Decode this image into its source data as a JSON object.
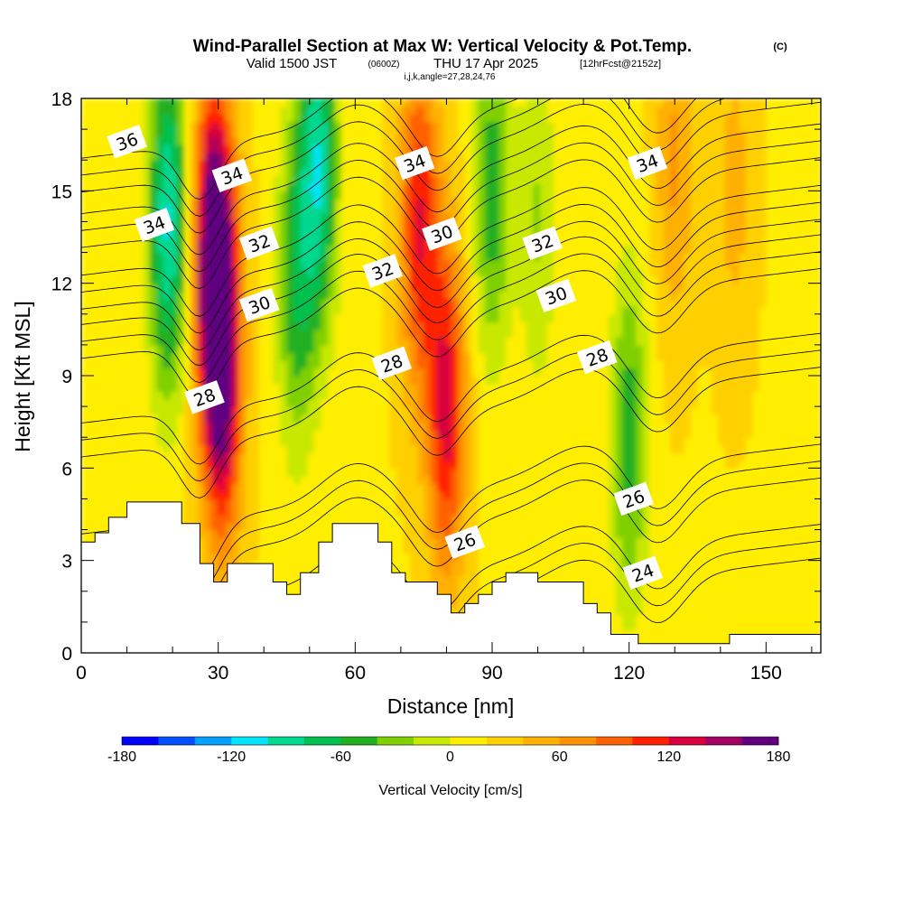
{
  "title": {
    "main": "Wind-Parallel Section at Max W: Vertical Velocity & Pot.Temp.",
    "copyright": "(C)",
    "valid": "Valid 1500 JST",
    "utc": "(0600Z)",
    "date": "THU 17 Apr 2025",
    "forecast": "[12hrFcst@2152z]",
    "indices": "i,j,k,angle=27,28,24,76"
  },
  "chart_data": {
    "type": "heatmap",
    "xlabel": "Distance [nm]",
    "ylabel": "Height [Kft MSL]",
    "xlim": [
      0,
      162
    ],
    "ylim": [
      0,
      18
    ],
    "x_ticks": [
      0,
      30,
      60,
      90,
      120,
      150
    ],
    "y_ticks": [
      0,
      3,
      6,
      9,
      12,
      15,
      18
    ],
    "colorbar": {
      "label": "Vertical Velocity [cm/s]",
      "range": [
        -180,
        180
      ],
      "step": 20,
      "tick_values": [
        -180,
        -120,
        -60,
        0,
        60,
        120,
        180
      ],
      "colors": [
        "#0000ff",
        "#0050ff",
        "#00a0ff",
        "#00e4ff",
        "#00d890",
        "#00c050",
        "#20b020",
        "#80d000",
        "#c8e800",
        "#ffee00",
        "#ffd000",
        "#ffb000",
        "#ff9000",
        "#ff6000",
        "#ff2000",
        "#d8003c",
        "#a00060",
        "#600080"
      ]
    },
    "velocity_features": [
      {
        "x": 29,
        "z": 13,
        "w": 170
      },
      {
        "x": 31,
        "z": 9,
        "w": 130
      },
      {
        "x": 19,
        "z": 14,
        "w": -120
      },
      {
        "x": 52,
        "z": 16,
        "w": -110
      },
      {
        "x": 47,
        "z": 12,
        "w": -70
      },
      {
        "x": 74,
        "z": 14,
        "w": 100
      },
      {
        "x": 80,
        "z": 8,
        "w": 110
      },
      {
        "x": 90,
        "z": 15,
        "w": -70
      },
      {
        "x": 120,
        "z": 7,
        "w": -70
      },
      {
        "x": 130,
        "z": 16,
        "w": 45
      },
      {
        "x": 143,
        "z": 15,
        "w": 30
      },
      {
        "x": 100,
        "z": 14,
        "w": -40
      }
    ],
    "theta_contours": [
      24,
      26,
      28,
      30,
      32,
      34,
      36
    ],
    "contour_labels": [
      {
        "value": "36",
        "x": 10,
        "z": 16.6
      },
      {
        "value": "34",
        "x": 16,
        "z": 13.9
      },
      {
        "value": "34",
        "x": 33,
        "z": 15.5
      },
      {
        "value": "34",
        "x": 73,
        "z": 15.9
      },
      {
        "value": "34",
        "x": 124,
        "z": 15.9
      },
      {
        "value": "32",
        "x": 39,
        "z": 13.3
      },
      {
        "value": "32",
        "x": 66,
        "z": 12.4
      },
      {
        "value": "32",
        "x": 101,
        "z": 13.3
      },
      {
        "value": "30",
        "x": 39,
        "z": 11.3
      },
      {
        "value": "30",
        "x": 79,
        "z": 13.6
      },
      {
        "value": "30",
        "x": 104,
        "z": 11.6
      },
      {
        "value": "28",
        "x": 27,
        "z": 8.3
      },
      {
        "value": "28",
        "x": 68,
        "z": 9.4
      },
      {
        "value": "28",
        "x": 113,
        "z": 9.6
      },
      {
        "value": "26",
        "x": 84,
        "z": 3.6
      },
      {
        "value": "26",
        "x": 121,
        "z": 5.0
      },
      {
        "value": "24",
        "x": 123,
        "z": 2.6
      }
    ],
    "terrain": [
      [
        0,
        3.6
      ],
      [
        3,
        3.6
      ],
      [
        3,
        3.9
      ],
      [
        6,
        3.9
      ],
      [
        6,
        4.4
      ],
      [
        10,
        4.4
      ],
      [
        10,
        4.9
      ],
      [
        22,
        4.9
      ],
      [
        22,
        4.2
      ],
      [
        26,
        4.2
      ],
      [
        26,
        2.9
      ],
      [
        29,
        2.9
      ],
      [
        29,
        2.3
      ],
      [
        32,
        2.3
      ],
      [
        32,
        2.9
      ],
      [
        42,
        2.9
      ],
      [
        42,
        2.3
      ],
      [
        45,
        2.3
      ],
      [
        45,
        1.9
      ],
      [
        48,
        1.9
      ],
      [
        48,
        2.6
      ],
      [
        52,
        2.6
      ],
      [
        52,
        3.6
      ],
      [
        55,
        3.6
      ],
      [
        55,
        4.2
      ],
      [
        65,
        4.2
      ],
      [
        65,
        3.6
      ],
      [
        68,
        3.6
      ],
      [
        68,
        2.6
      ],
      [
        71,
        2.6
      ],
      [
        71,
        2.3
      ],
      [
        78,
        2.3
      ],
      [
        78,
        1.9
      ],
      [
        81,
        1.9
      ],
      [
        81,
        1.3
      ],
      [
        84,
        1.3
      ],
      [
        84,
        1.6
      ],
      [
        87,
        1.6
      ],
      [
        87,
        1.9
      ],
      [
        90,
        1.9
      ],
      [
        90,
        2.3
      ],
      [
        93,
        2.3
      ],
      [
        93,
        2.6
      ],
      [
        100,
        2.6
      ],
      [
        100,
        2.3
      ],
      [
        110,
        2.3
      ],
      [
        110,
        1.6
      ],
      [
        113,
        1.6
      ],
      [
        113,
        1.3
      ],
      [
        116,
        1.3
      ],
      [
        116,
        0.6
      ],
      [
        122,
        0.6
      ],
      [
        122,
        0.3
      ],
      [
        142,
        0.3
      ],
      [
        142,
        0.6
      ],
      [
        162,
        0.6
      ]
    ]
  }
}
